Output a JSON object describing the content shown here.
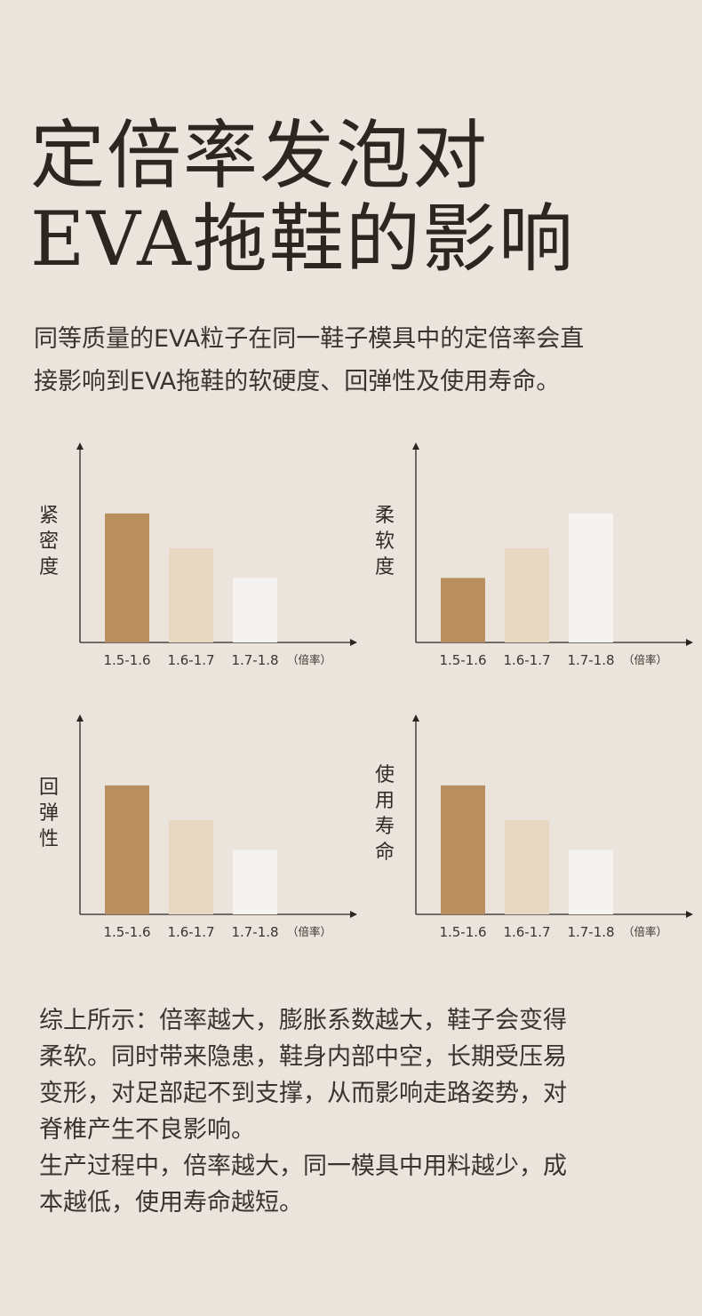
{
  "title": {
    "line1": "定倍率发泡对",
    "line2": "EVA拖鞋的影响"
  },
  "intro": {
    "line1": "同等质量的EVA粒子在同一鞋子模具中的定倍率会直",
    "line2": "接影响到EVA拖鞋的软硬度、回弹性及使用寿命。"
  },
  "colors": {
    "background": "#ebe4dc",
    "bar_dark": "#b98f5f",
    "bar_light": "#e8d8c2",
    "bar_white": "#f5f3ef",
    "axis": "#2a2520"
  },
  "chart_data": [
    {
      "type": "bar",
      "ylabel_chars": [
        "紧",
        "密",
        "度"
      ],
      "categories": [
        "1.5-1.6",
        "1.6-1.7",
        "1.7-1.8"
      ],
      "unit": "（倍率）",
      "values": [
        100,
        73,
        50
      ],
      "ylim": [
        0,
        155
      ],
      "grid": false
    },
    {
      "type": "bar",
      "ylabel_chars": [
        "柔",
        "软",
        "度"
      ],
      "categories": [
        "1.5-1.6",
        "1.6-1.7",
        "1.7-1.8"
      ],
      "unit": "（倍率）",
      "values": [
        50,
        73,
        100
      ],
      "ylim": [
        0,
        155
      ],
      "grid": false
    },
    {
      "type": "bar",
      "ylabel_chars": [
        "回",
        "弹",
        "性"
      ],
      "categories": [
        "1.5-1.6",
        "1.6-1.7",
        "1.7-1.8"
      ],
      "unit": "（倍率）",
      "values": [
        100,
        73,
        50
      ],
      "ylim": [
        0,
        155
      ],
      "grid": false
    },
    {
      "type": "bar",
      "ylabel_chars": [
        "使",
        "用",
        "寿",
        "命"
      ],
      "categories": [
        "1.5-1.6",
        "1.6-1.7",
        "1.7-1.8"
      ],
      "unit": "（倍率）",
      "values": [
        100,
        73,
        50
      ],
      "ylim": [
        0,
        155
      ],
      "grid": false
    }
  ],
  "summary": {
    "lines": [
      "综上所示：倍率越大，膨胀系数越大，鞋子会变得",
      "柔软。同时带来隐患，鞋身内部中空，长期受压易",
      "变形，对足部起不到支撑，从而影响走路姿势，对",
      "脊椎产生不良影响。",
      "生产过程中，倍率越大，同一模具中用料越少，成",
      "本越低，使用寿命越短。"
    ]
  }
}
